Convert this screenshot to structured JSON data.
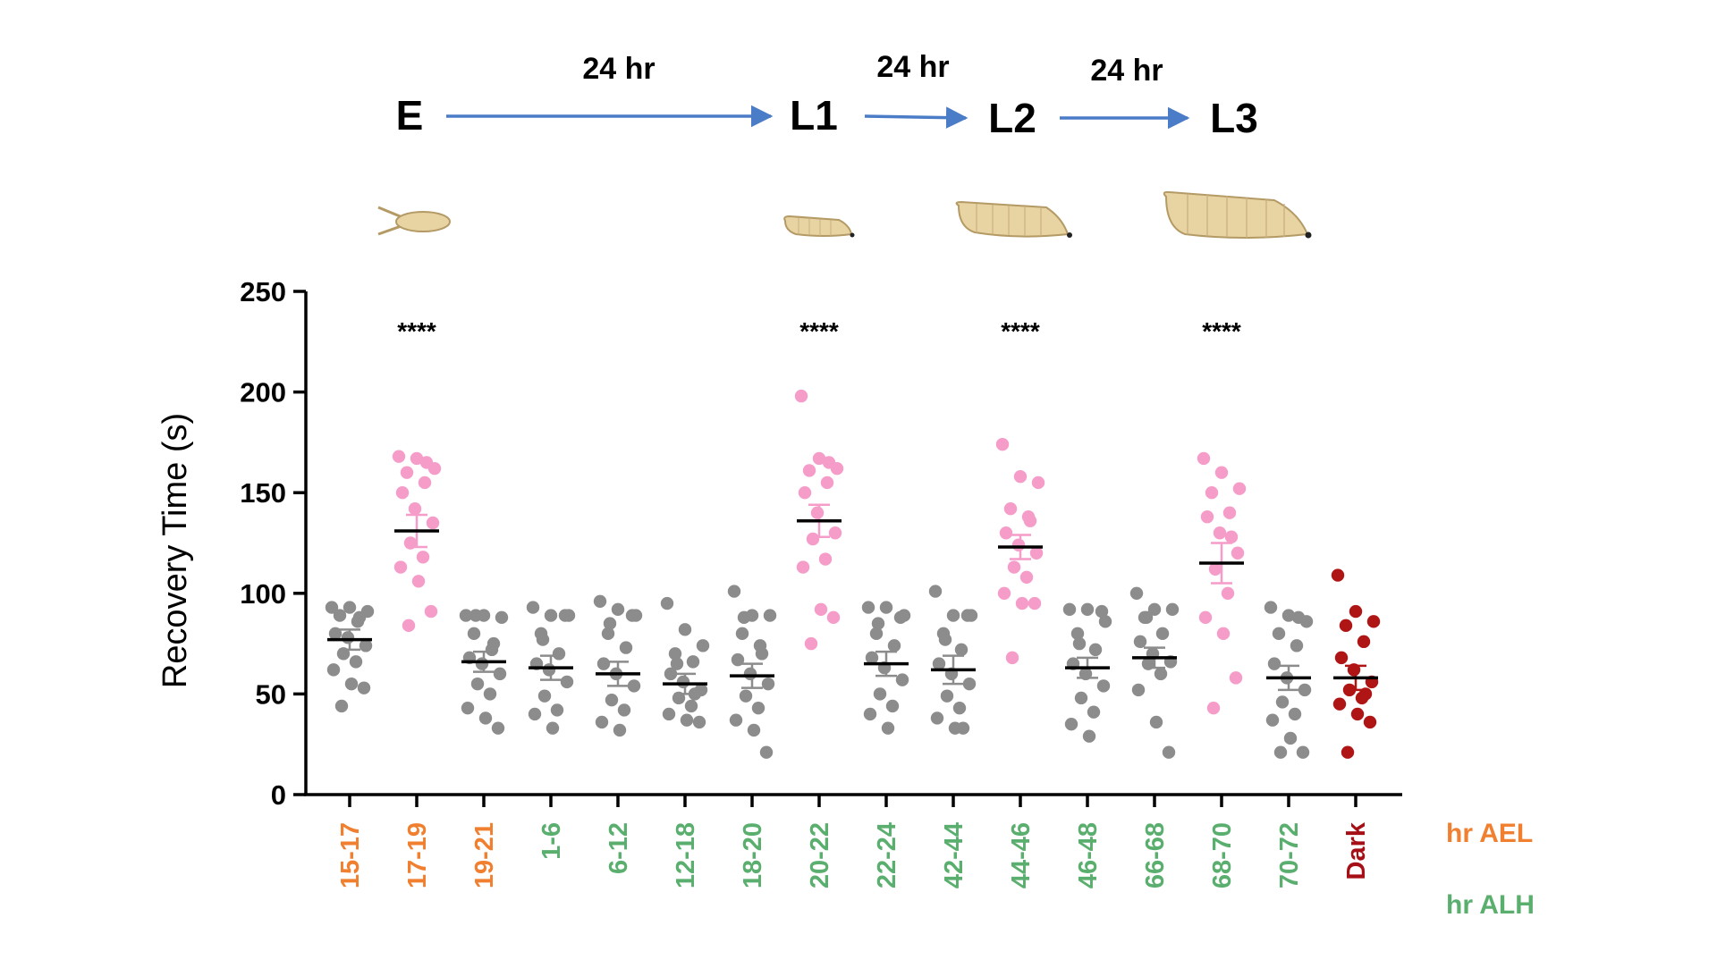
{
  "timeline": {
    "stages": [
      "E",
      "L1",
      "L2",
      "L3"
    ],
    "intervals": [
      "24 hr",
      "24 hr",
      "24 hr"
    ]
  },
  "legend": {
    "ael_label": "hr AEL",
    "alh_label": "hr ALH"
  },
  "colors": {
    "ael": "#F08030",
    "alh": "#5AAE6E",
    "dark": "#A50F15",
    "grey_points": "#8C8C8C",
    "pink_points": "#F59CC9",
    "dark_points": "#B01515",
    "arrow": "#4A7CC7",
    "larva_body": "#E8D3A2",
    "larva_outline": "#B49A65"
  },
  "chart_data": {
    "type": "scatter",
    "title": "",
    "xlabel": "",
    "ylabel": "Recovery Time (s)",
    "ylim": [
      0,
      250
    ],
    "yticks": [
      0,
      50,
      100,
      150,
      200,
      250
    ],
    "significance_marker": "****",
    "groups": [
      {
        "label": "15-17",
        "unit": "ael",
        "color_key": "grey_points",
        "mean": 77,
        "sem": 5,
        "sig": false,
        "values": [
          93,
          93,
          91,
          89,
          86,
          80,
          78,
          74,
          70,
          66,
          62,
          55,
          53,
          44,
          88
        ]
      },
      {
        "label": "17-19",
        "unit": "ael",
        "color_key": "pink_points",
        "mean": 131,
        "sem": 8,
        "sig": true,
        "values": [
          168,
          167,
          162,
          160,
          155,
          150,
          142,
          135,
          125,
          118,
          113,
          106,
          91,
          84,
          165
        ]
      },
      {
        "label": "19-21",
        "unit": "ael",
        "color_key": "grey_points",
        "mean": 66,
        "sem": 5,
        "sig": false,
        "values": [
          89,
          89,
          88,
          80,
          72,
          68,
          65,
          60,
          55,
          50,
          43,
          38,
          33,
          89,
          75
        ]
      },
      {
        "label": "1-6",
        "unit": "alh",
        "color_key": "grey_points",
        "mean": 63,
        "sem": 6,
        "sig": false,
        "values": [
          93,
          89,
          89,
          80,
          70,
          65,
          62,
          56,
          49,
          42,
          40,
          33,
          89,
          77
        ]
      },
      {
        "label": "6-12",
        "unit": "alh",
        "color_key": "grey_points",
        "mean": 60,
        "sem": 6,
        "sig": false,
        "values": [
          96,
          92,
          89,
          80,
          73,
          65,
          60,
          54,
          47,
          42,
          36,
          32,
          89,
          85
        ]
      },
      {
        "label": "12-18",
        "unit": "alh",
        "color_key": "grey_points",
        "mean": 55,
        "sem": 5,
        "sig": false,
        "values": [
          95,
          82,
          74,
          70,
          66,
          60,
          56,
          52,
          48,
          44,
          40,
          37,
          36,
          65,
          50
        ]
      },
      {
        "label": "18-20",
        "unit": "alh",
        "color_key": "grey_points",
        "mean": 59,
        "sem": 6,
        "sig": false,
        "values": [
          101,
          89,
          89,
          80,
          74,
          67,
          60,
          55,
          49,
          43,
          37,
          32,
          21,
          88,
          70
        ]
      },
      {
        "label": "20-22",
        "unit": "alh",
        "color_key": "pink_points",
        "mean": 136,
        "sem": 8,
        "sig": true,
        "values": [
          198,
          167,
          162,
          161,
          155,
          150,
          140,
          130,
          127,
          117,
          113,
          92,
          88,
          75,
          165
        ]
      },
      {
        "label": "22-24",
        "unit": "alh",
        "color_key": "grey_points",
        "mean": 65,
        "sem": 6,
        "sig": false,
        "values": [
          93,
          93,
          89,
          80,
          74,
          68,
          63,
          57,
          50,
          44,
          40,
          33,
          88,
          85
        ]
      },
      {
        "label": "42-44",
        "unit": "alh",
        "color_key": "grey_points",
        "mean": 62,
        "sem": 7,
        "sig": false,
        "values": [
          101,
          89,
          89,
          80,
          72,
          65,
          60,
          55,
          49,
          43,
          38,
          33,
          89,
          77,
          33
        ]
      },
      {
        "label": "44-46",
        "unit": "alh",
        "color_key": "pink_points",
        "mean": 123,
        "sem": 6,
        "sig": true,
        "values": [
          174,
          158,
          155,
          142,
          138,
          130,
          124,
          120,
          113,
          108,
          100,
          95,
          95,
          68,
          136
        ]
      },
      {
        "label": "46-48",
        "unit": "alh",
        "color_key": "grey_points",
        "mean": 63,
        "sem": 5,
        "sig": false,
        "values": [
          92,
          92,
          86,
          80,
          72,
          65,
          60,
          54,
          48,
          41,
          35,
          29,
          91,
          75
        ]
      },
      {
        "label": "66-68",
        "unit": "alh",
        "color_key": "grey_points",
        "mean": 68,
        "sem": 5,
        "sig": false,
        "values": [
          100,
          92,
          92,
          88,
          80,
          76,
          70,
          66,
          65,
          60,
          52,
          36,
          21,
          88
        ]
      },
      {
        "label": "68-70",
        "unit": "alh",
        "color_key": "pink_points",
        "mean": 115,
        "sem": 10,
        "sig": true,
        "values": [
          167,
          160,
          152,
          150,
          140,
          138,
          130,
          120,
          112,
          100,
          88,
          80,
          58,
          43,
          128
        ]
      },
      {
        "label": "70-72",
        "unit": "alh",
        "color_key": "grey_points",
        "mean": 58,
        "sem": 6,
        "sig": false,
        "values": [
          93,
          89,
          86,
          80,
          74,
          65,
          58,
          52,
          46,
          40,
          37,
          28,
          21,
          21,
          88
        ]
      },
      {
        "label": "Dark",
        "unit": "dark",
        "color_key": "dark_points",
        "mean": 58,
        "sem": 6,
        "sig": false,
        "values": [
          109,
          91,
          86,
          84,
          76,
          68,
          62,
          56,
          52,
          48,
          45,
          40,
          36,
          21,
          50
        ]
      }
    ]
  }
}
